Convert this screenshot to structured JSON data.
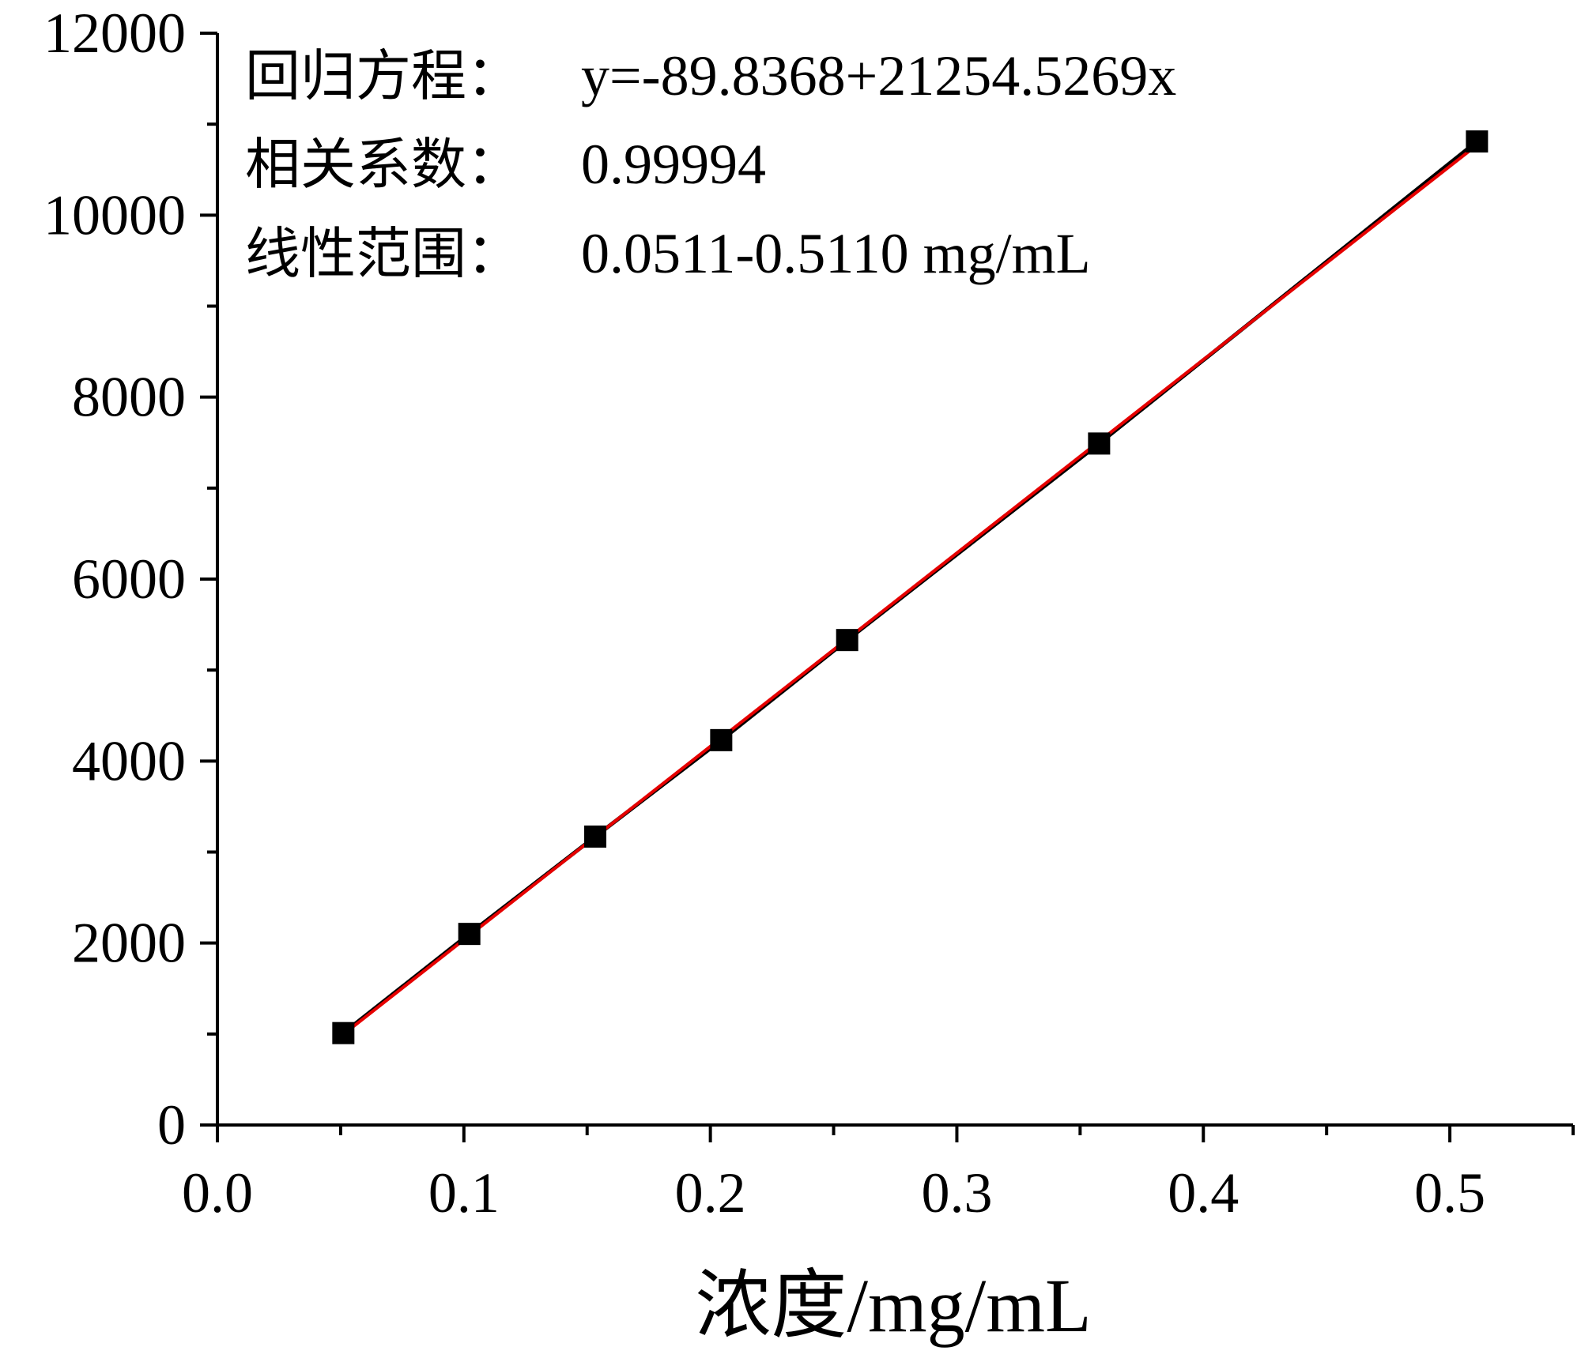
{
  "chart_data": {
    "type": "scatter",
    "title": "",
    "xlabel": "浓度/mg/mL",
    "ylabel": "",
    "xlim": [
      0,
      0.55
    ],
    "ylim": [
      0,
      12000
    ],
    "x_ticks": [
      "0.0",
      "0.1",
      "0.2",
      "0.3",
      "0.4",
      "0.5"
    ],
    "y_ticks": [
      "0",
      "2000",
      "4000",
      "6000",
      "8000",
      "10000",
      "12000"
    ],
    "x_tick_values": [
      0,
      0.1,
      0.2,
      0.3,
      0.4,
      0.5
    ],
    "y_tick_values": [
      0,
      2000,
      4000,
      6000,
      8000,
      10000,
      12000
    ],
    "grid": false,
    "series": [
      {
        "marker": "square",
        "color": "#000000",
        "x": [
          0.0511,
          0.1022,
          0.1533,
          0.2044,
          0.2555,
          0.3577,
          0.511
        ],
        "y": [
          1010,
          2100,
          3170,
          4230,
          5330,
          7490,
          10810
        ]
      }
    ],
    "connecting_line": {
      "color": "#000000"
    },
    "fit_line": {
      "color": "#e60000",
      "intercept": -89.8368,
      "slope": 21254.5269,
      "x_range": [
        0.0511,
        0.511
      ]
    },
    "annotations": [
      {
        "label": "回归方程：",
        "value": "y=-89.8368+21254.5269x"
      },
      {
        "label": "相关系数：",
        "value": "0.99994"
      },
      {
        "label": "线性范围：",
        "value": "0.0511-0.5110 mg/mL"
      }
    ]
  }
}
